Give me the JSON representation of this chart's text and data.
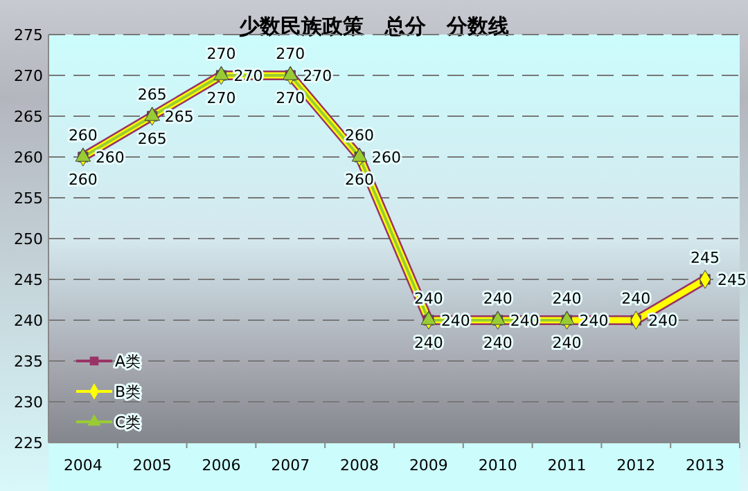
{
  "chart_data": {
    "type": "line",
    "title": "少数民族政策　总分　分数线",
    "categories": [
      "2004",
      "2005",
      "2006",
      "2007",
      "2008",
      "2009",
      "2010",
      "2011",
      "2012",
      "2013"
    ],
    "series": [
      {
        "name": "A类",
        "color": "#993366",
        "marker": "square",
        "values": [
          260,
          265,
          270,
          270,
          260,
          240,
          240,
          240,
          240,
          245
        ]
      },
      {
        "name": "B类",
        "color": "#ffff00",
        "marker": "diamond",
        "values": [
          260,
          265,
          270,
          270,
          260,
          240,
          240,
          240,
          240,
          245
        ]
      },
      {
        "name": "C类",
        "color": "#99cc33",
        "marker": "triangle",
        "values": [
          260,
          265,
          270,
          270,
          260,
          240,
          240,
          240,
          null,
          null
        ]
      }
    ],
    "ylim": [
      225,
      275
    ],
    "yticks": [
      225,
      230,
      235,
      240,
      245,
      250,
      255,
      260,
      265,
      270,
      275
    ],
    "grid": "y",
    "legend": "bottom left",
    "data_labels": true,
    "line_style": "solid"
  }
}
